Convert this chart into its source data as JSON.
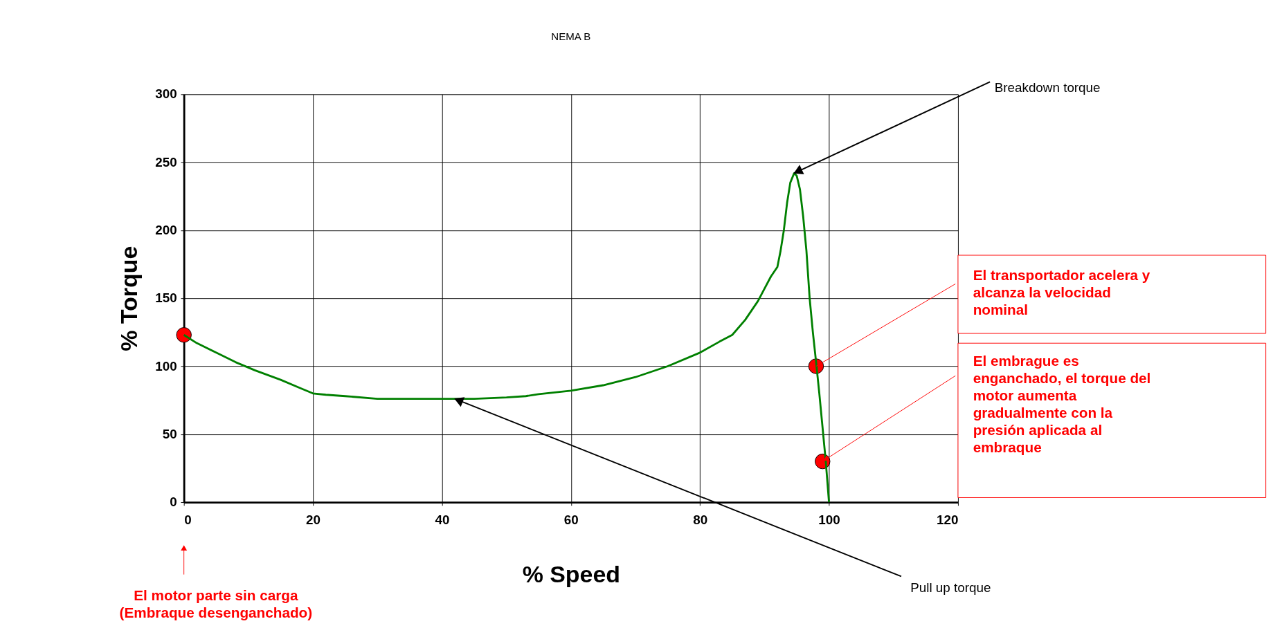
{
  "chart_data": {
    "type": "line",
    "title": "NEMA B",
    "xlabel": "% Speed",
    "ylabel": "% Torque",
    "xlim": [
      0,
      120
    ],
    "ylim": [
      0,
      300
    ],
    "xticks": [
      0,
      20,
      40,
      60,
      80,
      100,
      120
    ],
    "yticks": [
      0,
      50,
      100,
      150,
      200,
      250,
      300
    ],
    "grid": true,
    "series": [
      {
        "type": "line",
        "color": "#008000",
        "line_style": "solid",
        "x": [
          0,
          2,
          5,
          8,
          11,
          15,
          18,
          20,
          22,
          25,
          30,
          35,
          40,
          45,
          50,
          53,
          55,
          60,
          65,
          70,
          75,
          80,
          83,
          85,
          87,
          89,
          90,
          91,
          92,
          92.5,
          93,
          93.5,
          94,
          94.6,
          95,
          95.5,
          96,
          96.5,
          97,
          97.5,
          98,
          98.5,
          99,
          99.5,
          100
        ],
        "values": [
          123,
          117,
          110,
          103,
          97,
          90,
          84,
          80,
          79,
          78,
          76,
          76,
          76,
          76,
          77,
          78,
          79.5,
          82,
          86,
          92,
          100,
          110,
          118,
          123,
          134,
          148,
          157,
          166,
          173,
          185,
          200,
          220,
          235,
          242,
          240,
          230,
          210,
          185,
          150,
          125,
          103,
          80,
          55,
          30,
          0
        ]
      },
      {
        "type": "scatter",
        "color": "#ff0000",
        "marker": "circle",
        "x": [
          0,
          98,
          99
        ],
        "values": [
          123,
          100,
          30
        ]
      }
    ],
    "annotations": [
      {
        "text": "Breakdown torque",
        "x": 94.6,
        "y": 242
      },
      {
        "text": "Pull up torque",
        "x": 42,
        "y": 76
      },
      {
        "text": "El transportador acelera y\nalcanza la velocidad\nnominal",
        "x": 98,
        "y": 100
      },
      {
        "text": "El embrague es\nenganchado, el torque del\nmotor aumenta\ngradualmente con la\npresión aplicada al\nembraque",
        "x": 99,
        "y": 30
      },
      "El motor parte sin carga\n(Embraque desenganchado)"
    ]
  }
}
